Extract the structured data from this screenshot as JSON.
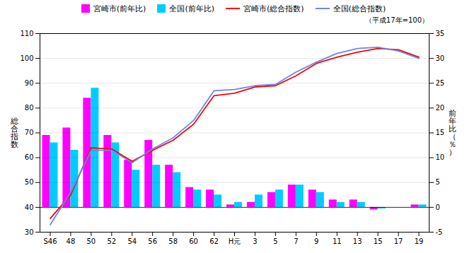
{
  "chart_data": {
    "type": "combo",
    "subtitle": "（平成17年=100）",
    "categories": [
      "S46",
      "48",
      "50",
      "52",
      "54",
      "56",
      "58",
      "60",
      "62",
      "H元",
      "3",
      "5",
      "7",
      "9",
      "11",
      "13",
      "15",
      "17",
      "19"
    ],
    "series": [
      {
        "name": "宮崎市(前年比)",
        "type": "bar",
        "axis": "y2",
        "color": "#FF00FF",
        "values": [
          14.5,
          16.0,
          22.0,
          14.5,
          9.5,
          13.5,
          8.5,
          4.0,
          3.5,
          0.5,
          1.0,
          3.0,
          4.5,
          3.5,
          1.5,
          1.5,
          -0.5,
          0.0,
          0.5
        ]
      },
      {
        "name": "全国(前年比)",
        "type": "bar",
        "axis": "y2",
        "color": "#00CCFF",
        "values": [
          13.0,
          11.5,
          24.0,
          13.0,
          7.5,
          8.5,
          7.0,
          3.5,
          2.5,
          1.0,
          2.5,
          3.5,
          4.5,
          3.0,
          1.0,
          1.0,
          -0.3,
          0.0,
          0.5
        ]
      },
      {
        "name": "宮崎市(総合指数)",
        "type": "line",
        "color": "#FF0000",
        "values": [
          35.5,
          45.0,
          64.0,
          63.5,
          58.5,
          63.0,
          67.0,
          73.5,
          85.0,
          86.0,
          88.5,
          89.0,
          93.0,
          98.0,
          100.5,
          102.5,
          104.0,
          103.5,
          100.5
        ]
      },
      {
        "name": "全国(総合指数)",
        "type": "line",
        "color": "#6688EE",
        "values": [
          33.0,
          46.0,
          63.0,
          63.0,
          58.0,
          63.5,
          68.0,
          75.0,
          87.0,
          87.5,
          89.0,
          89.5,
          94.5,
          98.5,
          102.0,
          104.0,
          104.5,
          103.0,
          100.0
        ]
      }
    ],
    "ylabel": "総\n合\n指\n数",
    "y2label": "前\n年\n比\n（\n％\n）",
    "ylim": [
      30,
      110
    ],
    "yticks": [
      30,
      40,
      50,
      60,
      70,
      80,
      90,
      100,
      110
    ],
    "y2lim": [
      -5,
      35
    ],
    "y2ticks": [
      -5,
      0,
      5,
      10,
      15,
      20,
      25,
      30,
      35
    ],
    "grid": true,
    "legend": "top"
  }
}
